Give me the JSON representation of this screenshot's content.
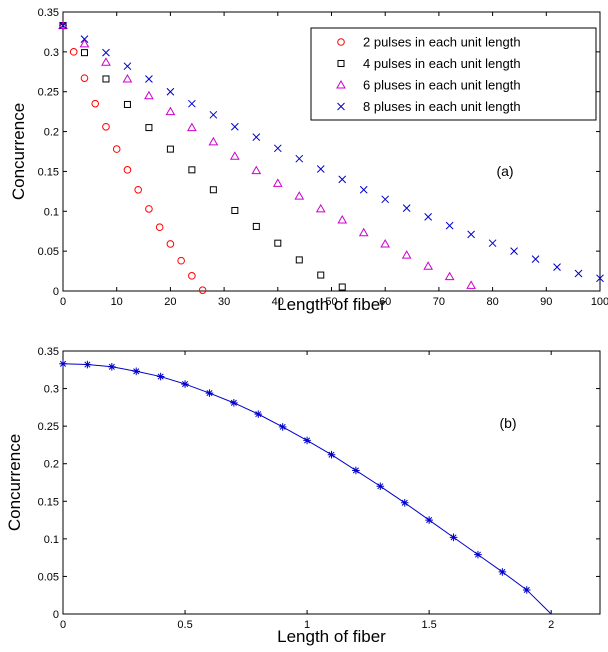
{
  "chart_data": [
    {
      "type": "scatter",
      "annotation": "(a)",
      "xlabel": "Length of fiber",
      "ylabel": "Concurrence",
      "xlim": [
        0,
        100
      ],
      "ylim": [
        0,
        0.35
      ],
      "xticks": [
        0,
        10,
        20,
        30,
        40,
        50,
        60,
        70,
        80,
        90,
        100
      ],
      "yticks": [
        0,
        0.05,
        0.1,
        0.15,
        0.2,
        0.25,
        0.3,
        0.35
      ],
      "grid": false,
      "legend_position": "top-right",
      "series": [
        {
          "name": "2 pulses in each unit length",
          "marker": "circle",
          "color": "#ff0000",
          "x": [
            0,
            2,
            4,
            6,
            8,
            10,
            12,
            14,
            16,
            18,
            20,
            22,
            24,
            26
          ],
          "y": [
            0.333,
            0.3,
            0.267,
            0.235,
            0.206,
            0.178,
            0.152,
            0.127,
            0.103,
            0.08,
            0.059,
            0.038,
            0.019,
            0.001
          ]
        },
        {
          "name": "4 pulses in each unit length",
          "marker": "square",
          "color": "#000000",
          "x": [
            0,
            4,
            8,
            12,
            16,
            20,
            24,
            28,
            32,
            36,
            40,
            44,
            48,
            52
          ],
          "y": [
            0.333,
            0.299,
            0.266,
            0.234,
            0.205,
            0.178,
            0.152,
            0.127,
            0.101,
            0.081,
            0.06,
            0.039,
            0.02,
            0.005
          ]
        },
        {
          "name": "6 pluses in each unit length",
          "marker": "triangle",
          "color": "#cc00cc",
          "x": [
            0,
            4,
            8,
            12,
            16,
            20,
            24,
            28,
            32,
            36,
            40,
            44,
            48,
            52,
            56,
            60,
            64,
            68,
            72,
            76
          ],
          "y": [
            0.333,
            0.31,
            0.287,
            0.266,
            0.245,
            0.225,
            0.205,
            0.187,
            0.169,
            0.151,
            0.135,
            0.119,
            0.103,
            0.089,
            0.073,
            0.059,
            0.045,
            0.031,
            0.018,
            0.007
          ]
        },
        {
          "name": "8 pluses in each unit length",
          "marker": "x",
          "color": "#0000cc",
          "x": [
            0,
            4,
            8,
            12,
            16,
            20,
            24,
            28,
            32,
            36,
            40,
            44,
            48,
            52,
            56,
            60,
            64,
            68,
            72,
            76,
            80,
            84,
            88,
            92,
            96,
            100
          ],
          "y": [
            0.333,
            0.316,
            0.299,
            0.282,
            0.266,
            0.25,
            0.235,
            0.221,
            0.206,
            0.193,
            0.179,
            0.166,
            0.153,
            0.14,
            0.127,
            0.115,
            0.104,
            0.093,
            0.082,
            0.071,
            0.06,
            0.05,
            0.04,
            0.03,
            0.022,
            0.016
          ]
        }
      ]
    },
    {
      "type": "line",
      "annotation": "(b)",
      "xlabel": "Length of fiber",
      "ylabel": "Concurrence",
      "xlim": [
        0,
        2.2
      ],
      "ylim": [
        0,
        0.35
      ],
      "xticks": [
        0,
        0.5,
        1,
        1.5,
        2
      ],
      "yticks": [
        0,
        0.05,
        0.1,
        0.15,
        0.2,
        0.25,
        0.3,
        0.35
      ],
      "grid": false,
      "series": [
        {
          "marker": "asterisk",
          "color": "#0000cc",
          "x": [
            0,
            0.1,
            0.2,
            0.3,
            0.4,
            0.5,
            0.6,
            0.7,
            0.8,
            0.9,
            1.0,
            1.1,
            1.2,
            1.3,
            1.4,
            1.5,
            1.6,
            1.7,
            1.8,
            1.9,
            2.0
          ],
          "y": [
            0.333,
            0.332,
            0.329,
            0.323,
            0.316,
            0.306,
            0.294,
            0.281,
            0.266,
            0.249,
            0.231,
            0.212,
            0.191,
            0.17,
            0.148,
            0.125,
            0.102,
            0.079,
            0.056,
            0.032,
            0.0
          ],
          "marker_count": 20
        }
      ]
    }
  ]
}
